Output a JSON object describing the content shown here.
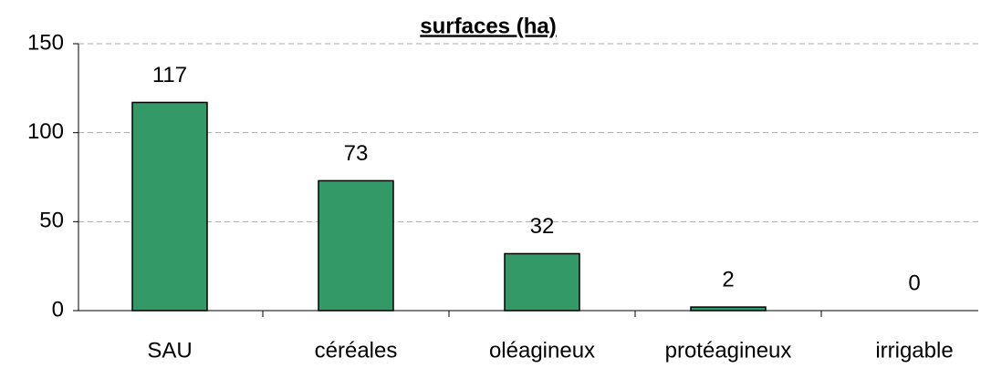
{
  "chart_data": {
    "type": "bar",
    "title": "surfaces (ha)",
    "categories": [
      "SAU",
      "céréales",
      "oléagineux",
      "protéagineux",
      "irrigable"
    ],
    "values": [
      117,
      73,
      32,
      2,
      0
    ],
    "color": "#339966",
    "ylim": [
      0,
      150
    ],
    "yticks": [
      0,
      50,
      100,
      150
    ],
    "grid": true
  }
}
